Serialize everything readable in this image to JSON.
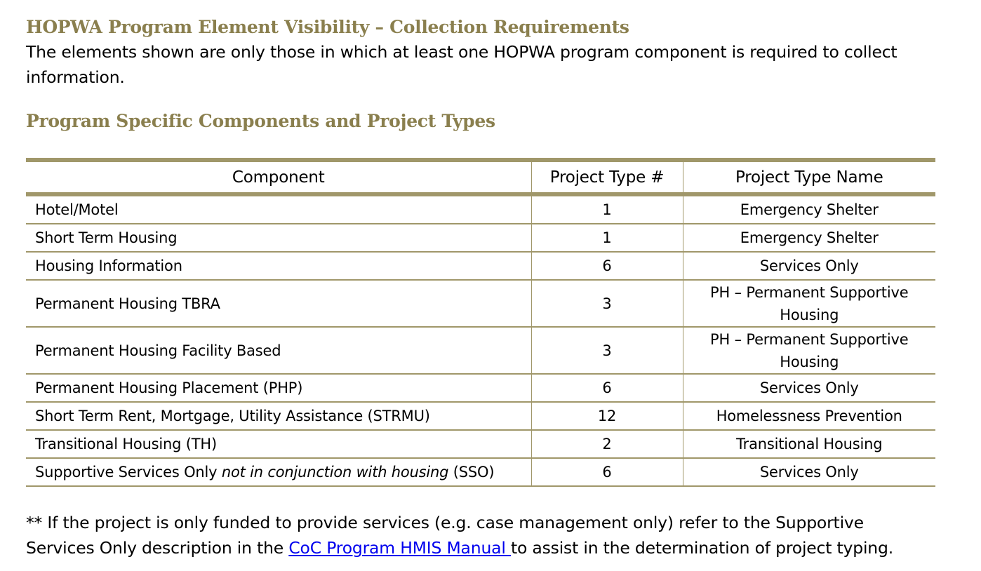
{
  "document": {
    "title": "HOPWA Program Element Visibility – Collection Requirements",
    "intro": "The elements shown are only those in which at least one HOPWA program component is required to collect information.",
    "section_heading": "Program Specific Components and Project Types"
  },
  "table": {
    "headers": {
      "component": "Component",
      "type_number": "Project Type #",
      "type_name": "Project Type Name"
    },
    "rows": [
      {
        "component": "Hotel/Motel",
        "type_number": "1",
        "type_name": "Emergency Shelter"
      },
      {
        "component": "Short Term Housing",
        "type_number": "1",
        "type_name": "Emergency Shelter"
      },
      {
        "component": "Housing Information",
        "type_number": "6",
        "type_name": "Services Only"
      },
      {
        "component": "Permanent Housing TBRA",
        "type_number": "3",
        "type_name": "PH – Permanent Supportive Housing"
      },
      {
        "component": "Permanent Housing Facility Based",
        "type_number": "3",
        "type_name": "PH – Permanent Supportive Housing"
      },
      {
        "component": "Permanent Housing Placement (PHP)",
        "type_number": "6",
        "type_name": "Services Only"
      },
      {
        "component": "Short Term Rent, Mortgage, Utility Assistance (STRMU)",
        "type_number": "12",
        "type_name": "Homelessness Prevention"
      },
      {
        "component": "Transitional Housing (TH)",
        "type_number": "2",
        "type_name": "Transitional Housing"
      },
      {
        "component_parts": {
          "before": "Supportive Services Only ",
          "italic": "not in conjunction with housing",
          "after": " (SSO)"
        },
        "type_number": "6",
        "type_name": "Services Only"
      }
    ]
  },
  "footnote": {
    "before": "** If the project is only funded to provide services (e.g. case management only) refer to the Supportive Services Only description in the ",
    "link_text": "CoC Program HMIS Manual ",
    "after": "to assist in the determination of project typing."
  },
  "colors": {
    "heading": "#8a7f4e",
    "rule": "#a0976a",
    "link": "#0000ee",
    "text": "#000000"
  }
}
